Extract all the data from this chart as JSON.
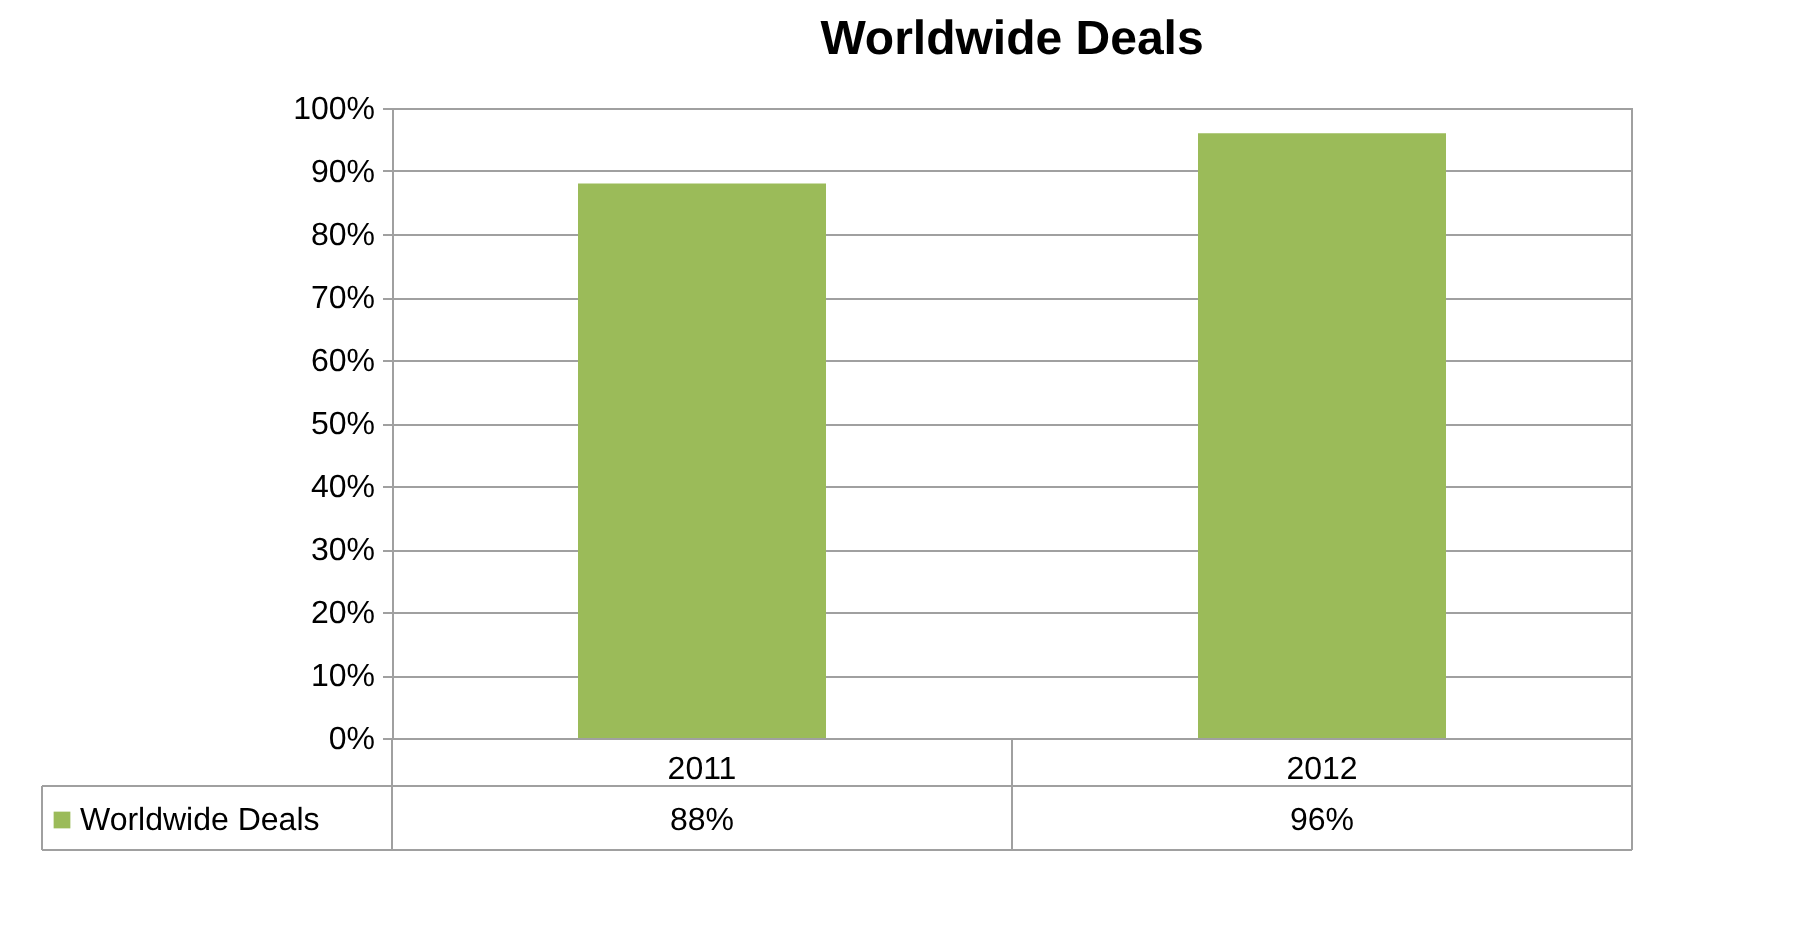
{
  "chart_data": {
    "type": "bar",
    "title": "Worldwide Deals",
    "categories": [
      "2011",
      "2012"
    ],
    "series": [
      {
        "name": "Worldwide Deals",
        "color": "#9bbb59",
        "values": [
          88,
          96
        ],
        "value_labels": [
          "88%",
          "96%"
        ]
      }
    ],
    "ylim": [
      0,
      100
    ],
    "yticks": [
      {
        "value": 0,
        "label": "0%"
      },
      {
        "value": 10,
        "label": "10%"
      },
      {
        "value": 20,
        "label": "20%"
      },
      {
        "value": 30,
        "label": "30%"
      },
      {
        "value": 40,
        "label": "40%"
      },
      {
        "value": 50,
        "label": "50%"
      },
      {
        "value": 60,
        "label": "60%"
      },
      {
        "value": 70,
        "label": "70%"
      },
      {
        "value": 80,
        "label": "80%"
      },
      {
        "value": 90,
        "label": "90%"
      },
      {
        "value": 100,
        "label": "100%"
      }
    ],
    "grid": "y",
    "legend": "bottom"
  }
}
